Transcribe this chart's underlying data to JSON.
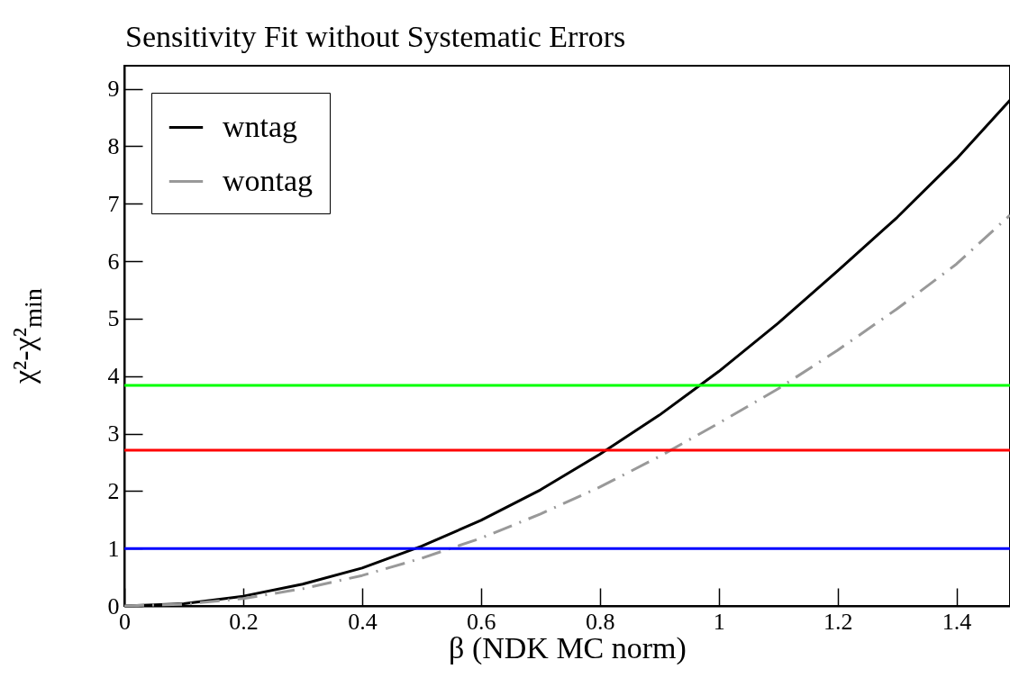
{
  "chart_data": {
    "type": "line",
    "title": "Sensitivity Fit without Systematic Errors",
    "xlabel": "β (NDK MC norm)",
    "ylabel": "χ²-χ²$_{min}$",
    "xlim": [
      0,
      1.49
    ],
    "ylim": [
      0,
      9.4
    ],
    "xticks": [
      0,
      0.2,
      0.4,
      0.6,
      0.8,
      1,
      1.2,
      1.4
    ],
    "yticks": [
      0,
      1,
      2,
      3,
      4,
      5,
      6,
      7,
      8,
      9
    ],
    "grid": false,
    "legend": "top left",
    "marker": "none",
    "series": [
      {
        "name": "wntag",
        "color": "#000000",
        "line_style": "solid",
        "x": [
          0,
          0.1,
          0.2,
          0.3,
          0.4,
          0.5,
          0.6,
          0.7,
          0.8,
          0.9,
          1.0,
          1.1,
          1.2,
          1.3,
          1.4,
          1.49
        ],
        "values": [
          0,
          0.04,
          0.17,
          0.38,
          0.66,
          1.04,
          1.49,
          2.02,
          2.64,
          3.32,
          4.08,
          4.92,
          5.83,
          6.76,
          7.78,
          8.8
        ]
      },
      {
        "name": "wontag",
        "color": "#999999",
        "line_style": "dashed",
        "x": [
          0,
          0.1,
          0.2,
          0.3,
          0.4,
          0.5,
          0.6,
          0.7,
          0.8,
          0.9,
          1.0,
          1.1,
          1.2,
          1.3,
          1.4,
          1.49
        ],
        "values": [
          0,
          0.03,
          0.13,
          0.3,
          0.53,
          0.83,
          1.18,
          1.6,
          2.07,
          2.6,
          3.18,
          3.78,
          4.45,
          5.17,
          5.95,
          6.8
        ]
      }
    ],
    "ref_lines": [
      {
        "axis": "y",
        "value": 3.84,
        "color": "#00ff00"
      },
      {
        "axis": "y",
        "value": 2.71,
        "color": "#ff0000"
      },
      {
        "axis": "y",
        "value": 1,
        "color": "#0000ff"
      }
    ]
  }
}
